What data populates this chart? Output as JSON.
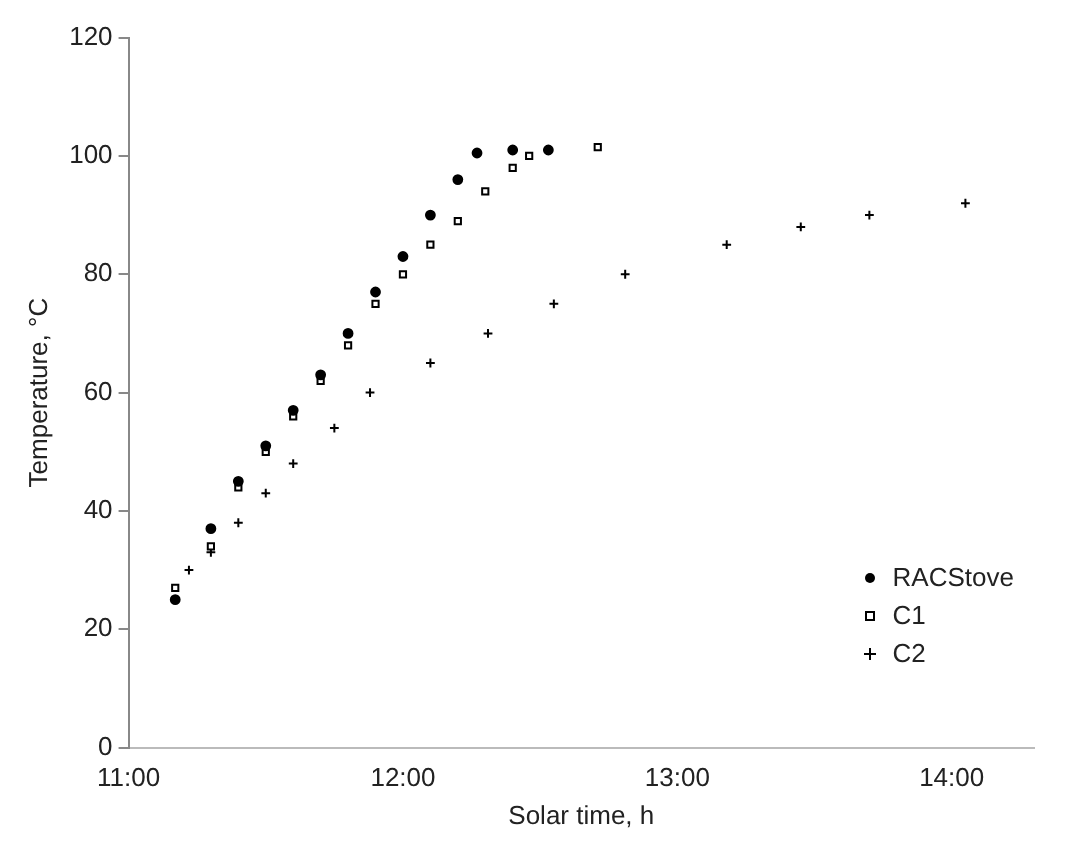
{
  "chart_data": {
    "type": "scatter",
    "xlabel": "Solar time, h",
    "ylabel": "Temperature, °C",
    "xlim": [
      11,
      14.3
    ],
    "xticks": [
      {
        "value": 11,
        "label": "11:00"
      },
      {
        "value": 12,
        "label": "12:00"
      },
      {
        "value": 13,
        "label": "13:00"
      },
      {
        "value": 14,
        "label": "14:00"
      }
    ],
    "ylim": [
      0,
      120
    ],
    "yticks": [
      0,
      20,
      40,
      60,
      80,
      100,
      120
    ],
    "grid": false,
    "legend": "bottom right",
    "series": [
      {
        "name": "RACStove",
        "color": "#000000",
        "marker": "circle",
        "x": [
          11.17,
          11.3,
          11.4,
          11.5,
          11.6,
          11.7,
          11.8,
          11.9,
          12.0,
          12.1,
          12.2,
          12.27,
          12.4,
          12.53
        ],
        "values": [
          25,
          37,
          45,
          51,
          57,
          63,
          70,
          77,
          83,
          90,
          96,
          100.5,
          101,
          101
        ]
      },
      {
        "name": "C1",
        "color": "#000000",
        "marker": "square",
        "x": [
          11.17,
          11.3,
          11.4,
          11.5,
          11.6,
          11.7,
          11.8,
          11.9,
          12.0,
          12.1,
          12.2,
          12.3,
          12.4,
          12.46,
          12.71
        ],
        "values": [
          27,
          34,
          44,
          50,
          56,
          62,
          68,
          75,
          80,
          85,
          89,
          94,
          98,
          100,
          101.5
        ]
      },
      {
        "name": "C2",
        "color": "#000000",
        "marker": "cross",
        "x": [
          11.22,
          11.3,
          11.4,
          11.5,
          11.6,
          11.75,
          11.88,
          12.1,
          12.31,
          12.55,
          12.81,
          13.18,
          13.45,
          13.7,
          14.05
        ],
        "values": [
          30,
          33,
          38,
          43,
          48,
          54,
          60,
          65,
          70,
          75,
          80,
          85,
          88,
          90,
          92
        ]
      }
    ]
  }
}
